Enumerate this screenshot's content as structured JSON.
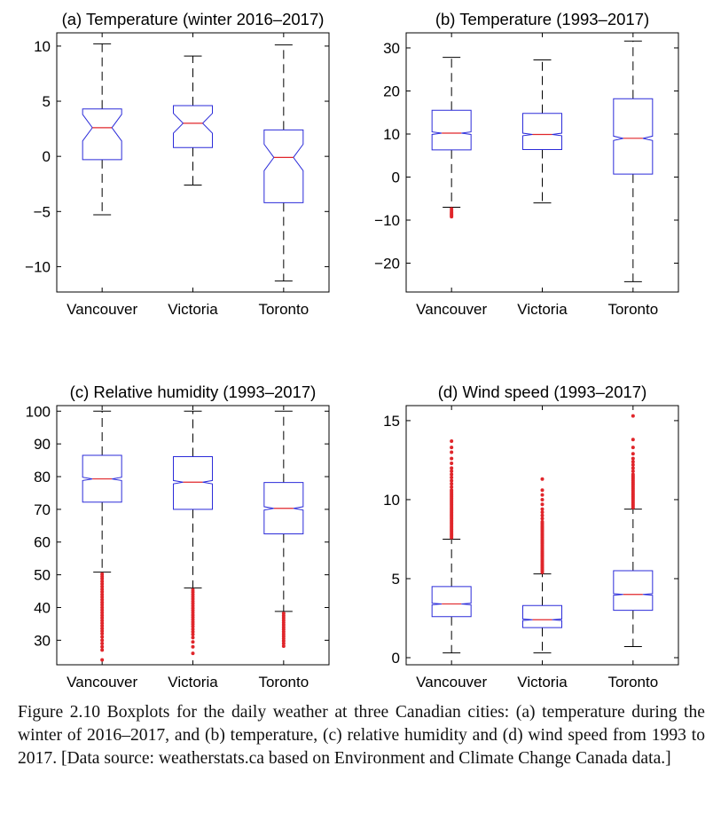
{
  "colors": {
    "box": "#2b2bd9",
    "median": "#e0262b",
    "notch_median": "#2b2bd9",
    "whisker": "#000000",
    "outlier": "#e0262b"
  },
  "chart_data": [
    {
      "type": "boxplot",
      "title": "(a) Temperature (winter 2016–2017)",
      "categories": [
        "Vancouver",
        "Victoria",
        "Toronto"
      ],
      "ylim": [
        -12.3,
        11.2
      ],
      "yticks": [
        10,
        5,
        0,
        -5,
        -10
      ],
      "ytick_labels": [
        "10",
        "5",
        "0",
        "−5",
        "−10"
      ],
      "xlabel": "",
      "ylabel": "",
      "grid": false,
      "boxes": [
        {
          "whisker_low": -5.3,
          "q1": -0.3,
          "median": 2.6,
          "q3": 4.3,
          "whisker_high": 10.2,
          "notch": [
            1.4,
            3.8
          ],
          "outliers": []
        },
        {
          "whisker_low": -2.6,
          "q1": 0.8,
          "median": 3.0,
          "q3": 4.6,
          "whisker_high": 9.1,
          "notch": [
            2.1,
            3.9
          ],
          "outliers": []
        },
        {
          "whisker_low": -11.3,
          "q1": -4.2,
          "median": -0.1,
          "q3": 2.4,
          "whisker_high": 10.1,
          "notch": [
            -1.3,
            1.1
          ],
          "outliers": []
        }
      ]
    },
    {
      "type": "boxplot",
      "title": "(b) Temperature (1993–2017)",
      "categories": [
        "Vancouver",
        "Victoria",
        "Toronto"
      ],
      "ylim": [
        -26.7,
        33.5
      ],
      "yticks": [
        30,
        20,
        10,
        0,
        -10,
        -20
      ],
      "ytick_labels": [
        "30",
        "20",
        "10",
        "0",
        "−10",
        "−20"
      ],
      "xlabel": "",
      "ylabel": "",
      "grid": false,
      "boxes": [
        {
          "whisker_low": -7.0,
          "q1": 6.3,
          "median": 10.2,
          "q3": 15.5,
          "whisker_high": 27.8,
          "notch": [
            9.9,
            10.5
          ],
          "outliers": [
            -7.4,
            -7.9,
            -8.3,
            -8.6,
            -8.9,
            -9.2
          ]
        },
        {
          "whisker_low": -6.0,
          "q1": 6.4,
          "median": 9.9,
          "q3": 14.8,
          "whisker_high": 27.2,
          "notch": [
            9.6,
            10.2
          ],
          "outliers": []
        },
        {
          "whisker_low": -24.3,
          "q1": 0.7,
          "median": 9.0,
          "q3": 18.2,
          "whisker_high": 31.6,
          "notch": [
            8.5,
            9.5
          ],
          "outliers": []
        }
      ]
    },
    {
      "type": "boxplot",
      "title": "(c) Relative humidity (1993–2017)",
      "categories": [
        "Vancouver",
        "Victoria",
        "Toronto"
      ],
      "ylim": [
        22.5,
        101.7
      ],
      "yticks": [
        100,
        90,
        80,
        70,
        60,
        50,
        40,
        30
      ],
      "ytick_labels": [
        "100",
        "90",
        "80",
        "70",
        "60",
        "50",
        "40",
        "30"
      ],
      "xlabel": "",
      "ylabel": "",
      "grid": false,
      "boxes": [
        {
          "whisker_low": 50.8,
          "q1": 72.2,
          "median": 79.3,
          "q3": 86.5,
          "whisker_high": 100.0,
          "notch": [
            78.8,
            79.8
          ],
          "outliers": [
            50.2,
            49.5,
            48.8,
            48.0,
            47.2,
            46.4,
            45.6,
            44.8,
            44.0,
            43.2,
            42.4,
            41.6,
            40.8,
            40.0,
            39.2,
            38.4,
            37.6,
            36.8,
            36.0,
            35.2,
            34.4,
            33.6,
            32.8,
            32.0,
            31.0,
            30.0,
            29.0,
            28.0,
            27.0,
            24.0
          ]
        },
        {
          "whisker_low": 46.0,
          "q1": 70.0,
          "median": 78.3,
          "q3": 86.1,
          "whisker_high": 100.0,
          "notch": [
            77.8,
            78.8
          ],
          "outliers": [
            45.4,
            44.7,
            44.0,
            43.3,
            42.6,
            41.9,
            41.2,
            40.5,
            39.8,
            39.1,
            38.4,
            37.7,
            37.0,
            36.3,
            35.6,
            34.9,
            34.2,
            33.4,
            32.6,
            31.8,
            30.8,
            29.5,
            28.0,
            26.0
          ]
        },
        {
          "whisker_low": 38.8,
          "q1": 62.5,
          "median": 70.3,
          "q3": 78.2,
          "whisker_high": 100.0,
          "notch": [
            69.8,
            70.8
          ],
          "outliers": [
            38.2,
            37.5,
            36.8,
            36.1,
            35.4,
            34.7,
            34.0,
            33.3,
            32.6,
            31.9,
            31.2,
            30.5,
            29.8,
            29.0,
            28.2
          ]
        }
      ]
    },
    {
      "type": "boxplot",
      "title": "(d) Wind speed (1993–2017)",
      "categories": [
        "Vancouver",
        "Victoria",
        "Toronto"
      ],
      "ylim": [
        -0.45,
        15.95
      ],
      "yticks": [
        15,
        10,
        5,
        0
      ],
      "ytick_labels": [
        "15",
        "10",
        "5",
        "0"
      ],
      "xlabel": "",
      "ylabel": "",
      "grid": false,
      "boxes": [
        {
          "whisker_low": 0.3,
          "q1": 2.6,
          "median": 3.4,
          "q3": 4.5,
          "whisker_high": 7.5,
          "notch": [
            3.35,
            3.45
          ],
          "outliers": [
            7.6,
            7.7,
            7.8,
            7.9,
            8.0,
            8.1,
            8.2,
            8.3,
            8.4,
            8.5,
            8.6,
            8.7,
            8.8,
            8.9,
            9.0,
            9.1,
            9.2,
            9.3,
            9.4,
            9.5,
            9.6,
            9.7,
            9.8,
            9.9,
            10.0,
            10.1,
            10.2,
            10.3,
            10.4,
            10.5,
            10.6,
            10.8,
            11.0,
            11.2,
            11.4,
            11.6,
            11.8,
            12.0,
            12.3,
            12.6,
            13.0,
            13.3,
            13.7
          ]
        },
        {
          "whisker_low": 0.3,
          "q1": 1.9,
          "median": 2.4,
          "q3": 3.3,
          "whisker_high": 5.3,
          "notch": [
            2.35,
            2.45
          ],
          "outliers": [
            5.4,
            5.5,
            5.6,
            5.7,
            5.8,
            5.9,
            6.0,
            6.1,
            6.2,
            6.3,
            6.4,
            6.5,
            6.6,
            6.7,
            6.8,
            6.9,
            7.0,
            7.1,
            7.2,
            7.3,
            7.4,
            7.5,
            7.6,
            7.7,
            7.8,
            7.9,
            8.0,
            8.1,
            8.2,
            8.3,
            8.4,
            8.5,
            8.6,
            8.8,
            9.0,
            9.2,
            9.4,
            9.7,
            10.0,
            10.3,
            10.6,
            11.3
          ]
        },
        {
          "whisker_low": 0.7,
          "q1": 3.0,
          "median": 4.0,
          "q3": 5.5,
          "whisker_high": 9.4,
          "notch": [
            3.95,
            4.05
          ],
          "outliers": [
            9.5,
            9.6,
            9.7,
            9.8,
            9.9,
            10.0,
            10.1,
            10.2,
            10.3,
            10.4,
            10.5,
            10.6,
            10.7,
            10.8,
            10.9,
            11.0,
            11.1,
            11.2,
            11.3,
            11.4,
            11.5,
            11.6,
            11.8,
            12.0,
            12.2,
            12.4,
            12.6,
            12.9,
            13.3,
            13.8,
            15.3
          ]
        }
      ]
    }
  ],
  "caption": "Figure 2.10 Boxplots for the daily weather at three Canadian cities: (a) temperature during the winter of 2016–2017, and (b) temperature, (c) relative humidity and (d) wind speed from 1993 to 2017. [Data source: weatherstats.ca based on Environment and Climate Change Canada data.]"
}
